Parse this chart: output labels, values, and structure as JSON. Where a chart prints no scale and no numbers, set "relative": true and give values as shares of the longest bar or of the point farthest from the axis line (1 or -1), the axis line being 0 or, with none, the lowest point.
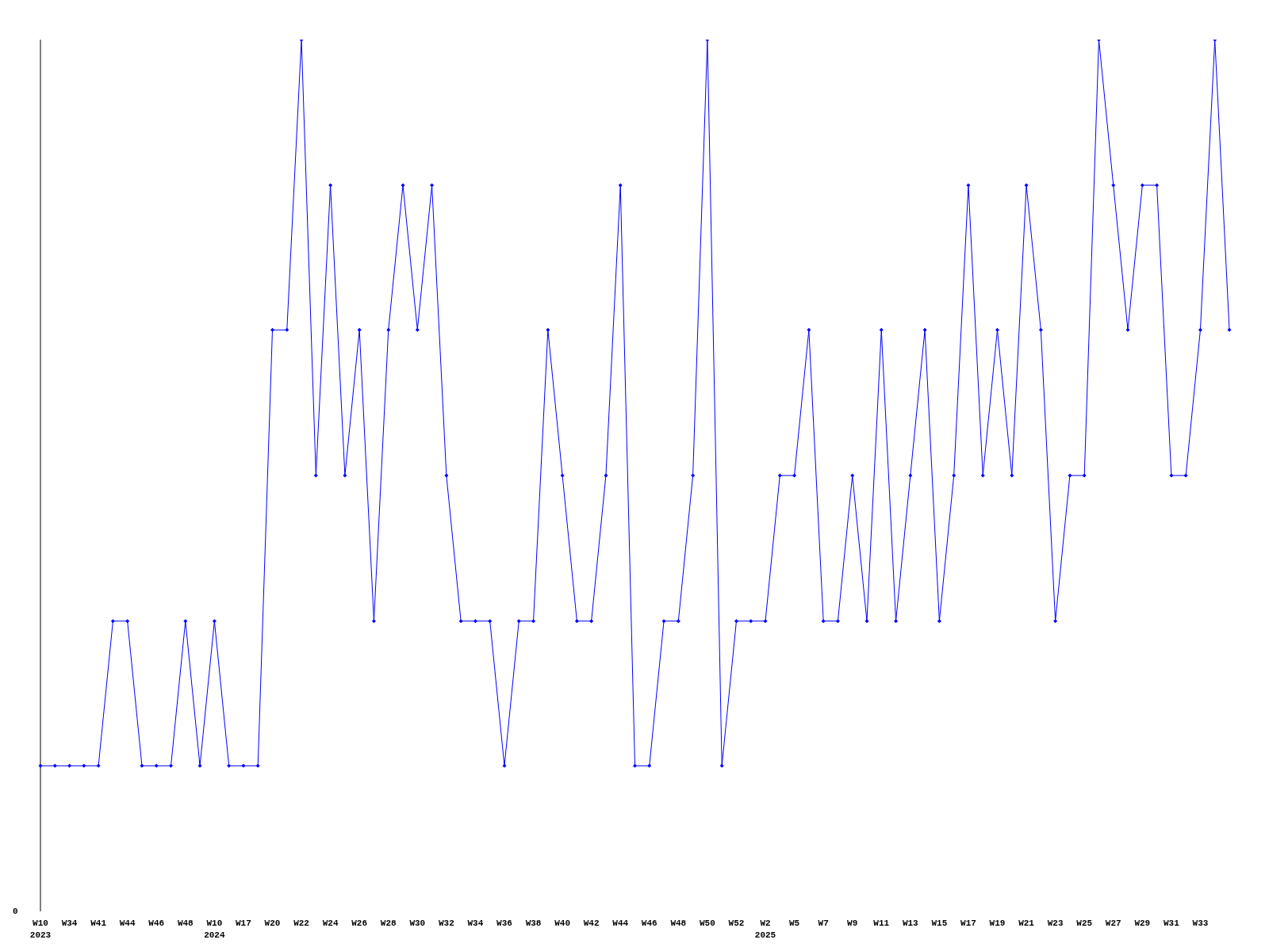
{
  "chart_data": {
    "type": "line",
    "relative": true,
    "marker": "diamond",
    "annotations": [
      "0"
    ],
    "categories": [
      "W10\n2023",
      null,
      "W34",
      null,
      "W41",
      null,
      "W44",
      null,
      "W46",
      null,
      "W48",
      null,
      "W10\n2024",
      null,
      "W17",
      null,
      "W20",
      null,
      "W22",
      null,
      "W24",
      null,
      "W26",
      null,
      "W28",
      null,
      "W30",
      null,
      "W32",
      null,
      "W34",
      null,
      "W36",
      null,
      "W38",
      null,
      "W40",
      null,
      "W42",
      null,
      "W44",
      null,
      "W46",
      null,
      "W48",
      null,
      "W50",
      null,
      "W52",
      null,
      "W2\n2025",
      null,
      "W5",
      null,
      "W7",
      null,
      "W9",
      null,
      "W11",
      null,
      "W13",
      null,
      "W15",
      null,
      "W17",
      null,
      "W19",
      null,
      "W21",
      null,
      "W23",
      null,
      "W25",
      null,
      "W27",
      null,
      "W29",
      null,
      "W31",
      null,
      "W33",
      null,
      null
    ],
    "series": [
      {
        "color": "#0000ff",
        "values": [
          0.167,
          0.167,
          0.167,
          0.167,
          0.167,
          0.333,
          0.333,
          0.167,
          0.167,
          0.167,
          0.333,
          0.167,
          0.333,
          0.167,
          0.167,
          0.167,
          0.667,
          0.667,
          1,
          0.5,
          0.833,
          0.5,
          0.667,
          0.333,
          0.667,
          0.833,
          0.667,
          0.833,
          0.5,
          0.333,
          0.333,
          0.333,
          0.167,
          0.333,
          0.333,
          0.667,
          0.5,
          0.333,
          0.333,
          0.5,
          0.833,
          0.167,
          0.167,
          0.333,
          0.333,
          0.5,
          1,
          0.167,
          0.333,
          0.333,
          0.333,
          0.5,
          0.5,
          0.667,
          0.333,
          0.333,
          0.5,
          0.333,
          0.667,
          0.333,
          0.5,
          0.667,
          0.333,
          0.5,
          0.833,
          0.5,
          0.667,
          0.5,
          0.833,
          0.667,
          0.333,
          0.5,
          0.5,
          1,
          0.833,
          0.667,
          0.833,
          0.833,
          0.5,
          0.5,
          0.667,
          1,
          0.667
        ]
      }
    ]
  }
}
